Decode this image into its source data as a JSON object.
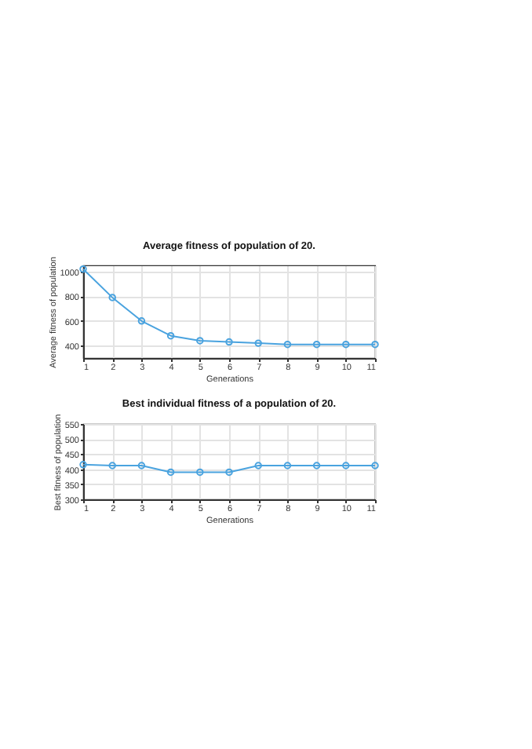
{
  "chart_data": [
    {
      "type": "line",
      "title": "Average fitness of population of 20.",
      "xlabel": "Generations",
      "ylabel": "Average fitness of population",
      "x": [
        1,
        2,
        3,
        4,
        5,
        6,
        7,
        8,
        9,
        10,
        11
      ],
      "series": [
        {
          "color": "#4aa3df",
          "values": [
            1020,
            790,
            600,
            480,
            440,
            430,
            420,
            410,
            410,
            410,
            410
          ]
        }
      ],
      "xlim": [
        1,
        11
      ],
      "xticks": [
        1,
        2,
        3,
        4,
        5,
        6,
        7,
        8,
        9,
        10,
        11
      ],
      "ylim": [
        300,
        1050
      ],
      "yticks": [
        400,
        600,
        800,
        1000
      ],
      "grid": true,
      "marker": "circle",
      "line_style": "solid"
    },
    {
      "type": "line",
      "title": "Best individual fitness of a population of 20.",
      "xlabel": "Generations",
      "ylabel": "Best fitness of population",
      "x": [
        1,
        2,
        3,
        4,
        5,
        6,
        7,
        8,
        9,
        10,
        11
      ],
      "series": [
        {
          "color": "#4aa3df",
          "values": [
            415,
            412,
            412,
            390,
            390,
            390,
            412,
            412,
            412,
            412,
            412
          ]
        }
      ],
      "xlim": [
        1,
        11
      ],
      "xticks": [
        1,
        2,
        3,
        4,
        5,
        6,
        7,
        8,
        9,
        10,
        11
      ],
      "ylim": [
        300,
        550
      ],
      "yticks": [
        300,
        350,
        400,
        450,
        500,
        550
      ],
      "grid": true,
      "marker": "circle",
      "line_style": "solid"
    }
  ]
}
